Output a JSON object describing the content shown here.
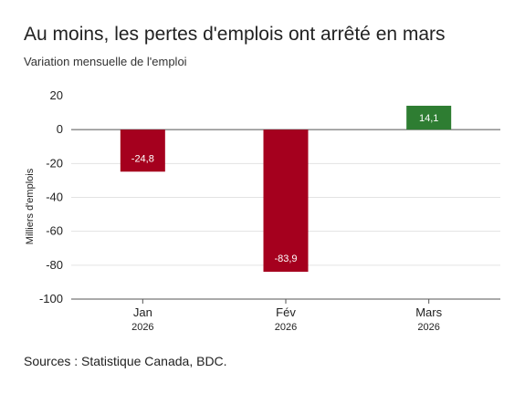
{
  "title": "Au moins, les pertes d'emplois ont arrêté en mars",
  "subtitle": "Variation mensuelle de l'emploi",
  "source": "Sources : Statistique Canada, BDC.",
  "chart_data": {
    "type": "bar",
    "categories": [
      "Jan",
      "Fév",
      "Mars"
    ],
    "category_sublabels": [
      "2026",
      "2026",
      "2026"
    ],
    "values": [
      -24.8,
      -83.9,
      14.1
    ],
    "data_labels": [
      "-24,8",
      "-83,9",
      "14,1"
    ],
    "bar_colors": [
      "#a5001e",
      "#a5001e",
      "#2e7d32"
    ],
    "ylabel": "Milliers d'emplois",
    "xlabel": "",
    "ylim": [
      -100,
      20
    ],
    "yticks": [
      20,
      0,
      -20,
      -40,
      -60,
      -80,
      -100
    ],
    "grid": true,
    "legend": "none"
  }
}
